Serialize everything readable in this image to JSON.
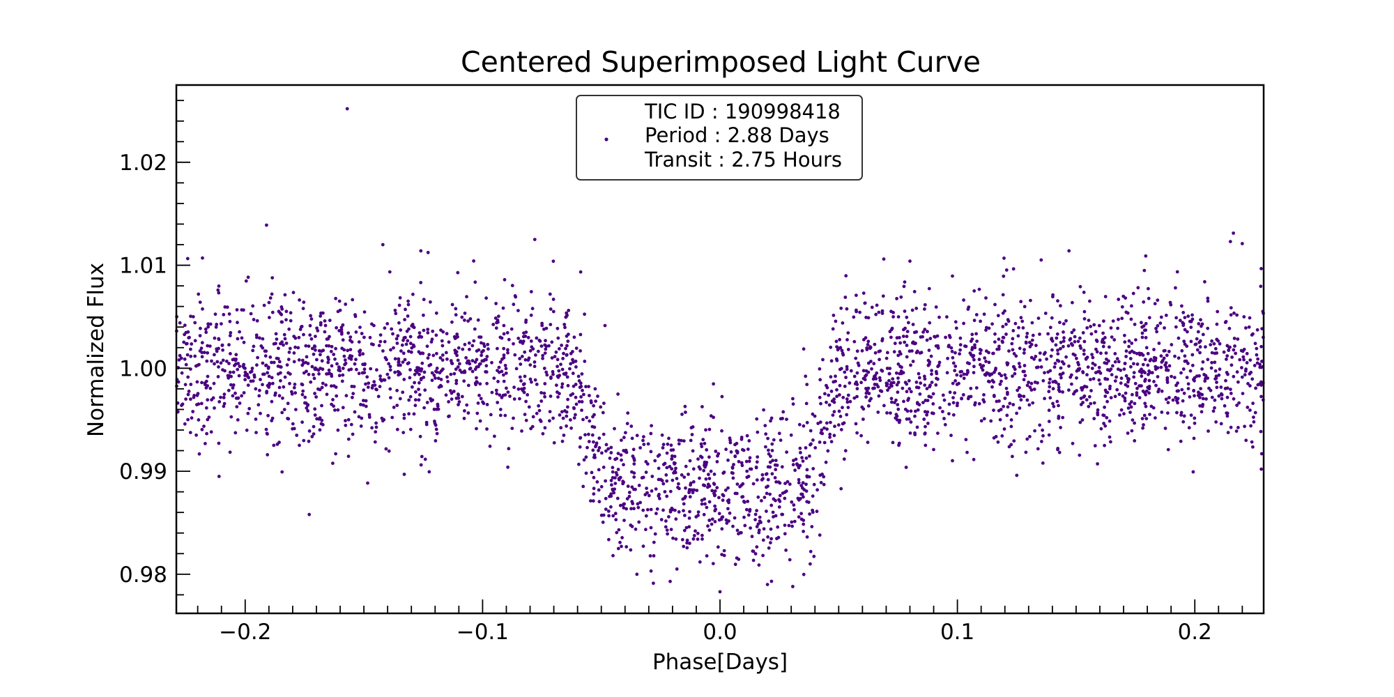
{
  "chart_data": {
    "type": "scatter",
    "title": "Centered Superimposed Light Curve",
    "xlabel": "Phase[Days]",
    "ylabel": "Normalized Flux",
    "xlim": [
      -0.229,
      0.229
    ],
    "ylim": [
      0.9762,
      1.0275
    ],
    "x_ticks": [
      -0.2,
      -0.1,
      0.0,
      0.1,
      0.2
    ],
    "x_tick_labels": [
      "−0.2",
      "−0.1",
      "0.0",
      "0.1",
      "0.2"
    ],
    "y_ticks": [
      0.98,
      0.99,
      1.0,
      1.01,
      1.02
    ],
    "y_tick_labels": [
      "0.98",
      "0.99",
      "1.00",
      "1.01",
      "1.02"
    ],
    "grid": false,
    "legend_position": "top-center",
    "legend_lines": [
      "TIC ID : 190998418",
      "Period : 2.88 Days",
      "Transit : 2.75 Hours"
    ],
    "point_color": "#4b0082",
    "series": [
      {
        "name": "TIC ID : 190998418",
        "model": {
          "baseline": 1.0,
          "transit_center": 0.0,
          "transit_depth": 0.0115,
          "ingress_start": -0.062,
          "ingress_end": -0.048,
          "egress_start": 0.036,
          "egress_end": 0.05,
          "scatter_sigma": 0.0037,
          "n_points": 3200
        },
        "outliers": [
          {
            "x": -0.157,
            "y": 1.0252
          },
          {
            "x": -0.191,
            "y": 1.0139
          },
          {
            "x": -0.078,
            "y": 1.0125
          },
          {
            "x": -0.142,
            "y": 1.012
          },
          {
            "x": -0.126,
            "y": 1.0114
          },
          {
            "x": -0.173,
            "y": 0.9858
          },
          {
            "x": -0.211,
            "y": 0.9895
          },
          {
            "x": -0.133,
            "y": 0.9897
          },
          {
            "x": 0.0,
            "y": 0.9783
          },
          {
            "x": 0.215,
            "y": 1.0123
          },
          {
            "x": 0.22,
            "y": 1.0121
          },
          {
            "x": 0.147,
            "y": 1.0114
          },
          {
            "x": -0.218,
            "y": 1.0107
          },
          {
            "x": 0.08,
            "y": 1.0104
          },
          {
            "x": 0.069,
            "y": 1.0106
          },
          {
            "x": 0.228,
            "y": 0.9902
          },
          {
            "x": 0.125,
            "y": 0.9896
          },
          {
            "x": -0.035,
            "y": 0.98
          },
          {
            "x": 0.02,
            "y": 0.979
          },
          {
            "x": -0.021,
            "y": 0.9793
          },
          {
            "x": 0.038,
            "y": 0.981
          }
        ]
      }
    ]
  }
}
